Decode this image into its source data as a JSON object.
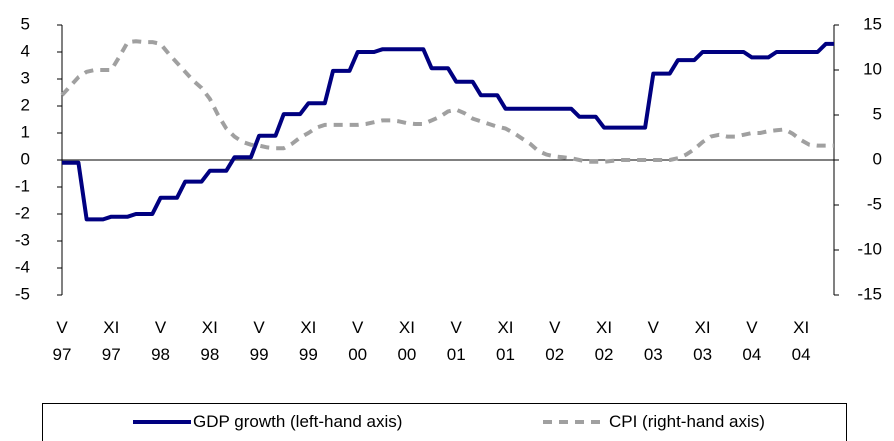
{
  "chart_data": {
    "type": "line",
    "categories": [
      "V\n97",
      null,
      null,
      null,
      null,
      null,
      "XI\n97",
      null,
      null,
      null,
      null,
      null,
      "V\n98",
      null,
      null,
      null,
      null,
      null,
      "XI\n98",
      null,
      null,
      null,
      null,
      null,
      "V\n99",
      null,
      null,
      null,
      null,
      null,
      "XI\n99",
      null,
      null,
      null,
      null,
      null,
      "V\n00",
      null,
      null,
      null,
      null,
      null,
      "XI\n00",
      null,
      null,
      null,
      null,
      null,
      "V\n01",
      null,
      null,
      null,
      null,
      null,
      "XI\n01",
      null,
      null,
      null,
      null,
      null,
      "V\n02",
      null,
      null,
      null,
      null,
      null,
      "XI\n02",
      null,
      null,
      null,
      null,
      null,
      "V\n03",
      null,
      null,
      null,
      null,
      null,
      "XI\n03",
      null,
      null,
      null,
      null,
      null,
      "V\n04",
      null,
      null,
      null,
      null,
      null,
      "XI\n04",
      null,
      null,
      null,
      null
    ],
    "series": [
      {
        "name": "GDP growth (left-hand axis)",
        "color": "#000080",
        "axis": "y",
        "values": [
          -0.1,
          -0.1,
          -0.1,
          -2.2,
          -2.2,
          -2.2,
          -2.1,
          -2.1,
          -2.1,
          -2.0,
          -2.0,
          -2.0,
          -1.4,
          -1.4,
          -1.4,
          -0.8,
          -0.8,
          -0.8,
          -0.4,
          -0.4,
          -0.4,
          0.1,
          0.1,
          0.1,
          0.9,
          0.9,
          0.9,
          1.7,
          1.7,
          1.7,
          2.1,
          2.1,
          2.1,
          3.3,
          3.3,
          3.3,
          4.0,
          4.0,
          4.0,
          4.1,
          4.1,
          4.1,
          4.1,
          4.1,
          4.1,
          3.4,
          3.4,
          3.4,
          2.9,
          2.9,
          2.9,
          2.4,
          2.4,
          2.4,
          1.9,
          1.9,
          1.9,
          1.9,
          1.9,
          1.9,
          1.9,
          1.9,
          1.9,
          1.6,
          1.6,
          1.6,
          1.2,
          1.2,
          1.2,
          1.2,
          1.2,
          1.2,
          3.2,
          3.2,
          3.2,
          3.7,
          3.7,
          3.7,
          4.0,
          4.0,
          4.0,
          4.0,
          4.0,
          4.0,
          3.8,
          3.8,
          3.8,
          4.0,
          4.0,
          4.0,
          4.0,
          4.0,
          4.0,
          4.3,
          4.3
        ]
      },
      {
        "name": "CPI (right-hand axis)",
        "color": "#a0a0a0",
        "axis": "y2",
        "values": [
          7.2,
          8.2,
          9.2,
          9.8,
          10.0,
          10.0,
          10.0,
          11.5,
          13.1,
          13.2,
          13.1,
          13.1,
          12.9,
          11.8,
          10.8,
          9.8,
          8.8,
          8.0,
          6.8,
          5.0,
          3.5,
          2.6,
          2.0,
          1.7,
          1.6,
          1.4,
          1.3,
          1.3,
          1.8,
          2.5,
          3.0,
          3.6,
          3.9,
          3.9,
          3.9,
          3.9,
          3.9,
          4.0,
          4.2,
          4.4,
          4.4,
          4.3,
          4.1,
          4.0,
          4.0,
          4.4,
          4.8,
          5.4,
          5.6,
          5.2,
          4.6,
          4.3,
          4.0,
          3.7,
          3.5,
          3.0,
          2.4,
          1.8,
          1.0,
          0.6,
          0.4,
          0.3,
          0.2,
          0.0,
          -0.2,
          -0.2,
          -0.2,
          -0.1,
          0.0,
          0.0,
          0.0,
          0.0,
          0.0,
          0.0,
          0.0,
          0.2,
          0.6,
          1.2,
          2.0,
          2.6,
          2.8,
          2.6,
          2.6,
          2.8,
          3.0,
          3.0,
          3.2,
          3.3,
          3.4,
          2.9,
          2.2,
          1.7,
          1.6,
          1.6,
          1.6
        ]
      }
    ],
    "ylim": [
      -5,
      5
    ],
    "yticks": [
      -5,
      -4,
      -3,
      -2,
      -1,
      0,
      1,
      2,
      3,
      4,
      5
    ],
    "y2lim": [
      -15,
      15
    ],
    "y2ticks": [
      -15,
      -10,
      -5,
      0,
      5,
      10,
      15
    ],
    "grid": false,
    "legend": "bottom"
  }
}
